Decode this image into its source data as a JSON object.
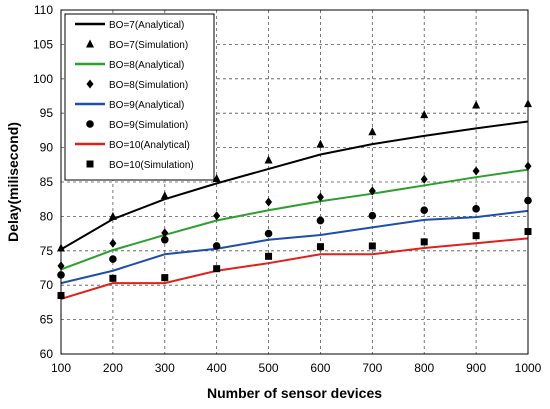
{
  "chart_data": {
    "type": "line",
    "title": "",
    "xlabel": "Number of sensor devices",
    "ylabel": "Delay(milisecond)",
    "xlim": [
      100,
      1000
    ],
    "ylim": [
      60,
      110
    ],
    "x_ticks": [
      100,
      200,
      300,
      400,
      500,
      600,
      700,
      800,
      900,
      1000
    ],
    "y_ticks": [
      60,
      65,
      70,
      75,
      80,
      85,
      90,
      95,
      100,
      105,
      110
    ],
    "grid": true,
    "legend_position": "top-left",
    "x": [
      100,
      200,
      300,
      400,
      500,
      600,
      700,
      800,
      900,
      1000
    ],
    "series": [
      {
        "name": "BO=7(Analytical)",
        "kind": "line",
        "color": "#000000",
        "values": [
          75.2,
          79.6,
          82.5,
          84.8,
          86.9,
          89.0,
          90.5,
          91.7,
          92.8,
          93.8
        ]
      },
      {
        "name": "BO=7(Simulation)",
        "kind": "marker",
        "marker": "triangle",
        "color": "#000000",
        "values": [
          75.4,
          80.0,
          83.0,
          85.5,
          88.2,
          90.5,
          92.3,
          94.8,
          96.2,
          96.4
        ]
      },
      {
        "name": "BO=8(Analytical)",
        "kind": "line",
        "color": "#2ca02c",
        "values": [
          72.3,
          75.1,
          77.3,
          79.4,
          80.9,
          82.2,
          83.3,
          84.5,
          85.7,
          86.8
        ]
      },
      {
        "name": "BO=8(Simulation)",
        "kind": "marker",
        "marker": "diamond",
        "color": "#000000",
        "values": [
          72.8,
          76.1,
          77.6,
          80.1,
          82.1,
          82.8,
          83.7,
          85.4,
          86.6,
          87.3
        ]
      },
      {
        "name": "BO=9(Analytical)",
        "kind": "line",
        "color": "#1f4fa8",
        "values": [
          70.3,
          72.1,
          74.5,
          75.3,
          76.6,
          77.3,
          78.4,
          79.5,
          79.9,
          80.8
        ]
      },
      {
        "name": "BO=9(Simulation)",
        "kind": "marker",
        "marker": "circle",
        "color": "#000000",
        "values": [
          71.5,
          73.8,
          76.6,
          75.7,
          77.5,
          79.4,
          80.1,
          80.9,
          81.1,
          82.3
        ]
      },
      {
        "name": "BO=10(Analytical)",
        "kind": "line",
        "color": "#e0201b",
        "values": [
          68.0,
          70.3,
          70.3,
          72.1,
          73.2,
          74.5,
          74.5,
          75.4,
          76.1,
          76.8
        ]
      },
      {
        "name": "BO=10(Simulation)",
        "kind": "marker",
        "marker": "square",
        "color": "#000000",
        "values": [
          68.5,
          71.0,
          71.1,
          72.4,
          74.2,
          75.6,
          75.7,
          76.3,
          77.2,
          77.8
        ]
      }
    ]
  }
}
